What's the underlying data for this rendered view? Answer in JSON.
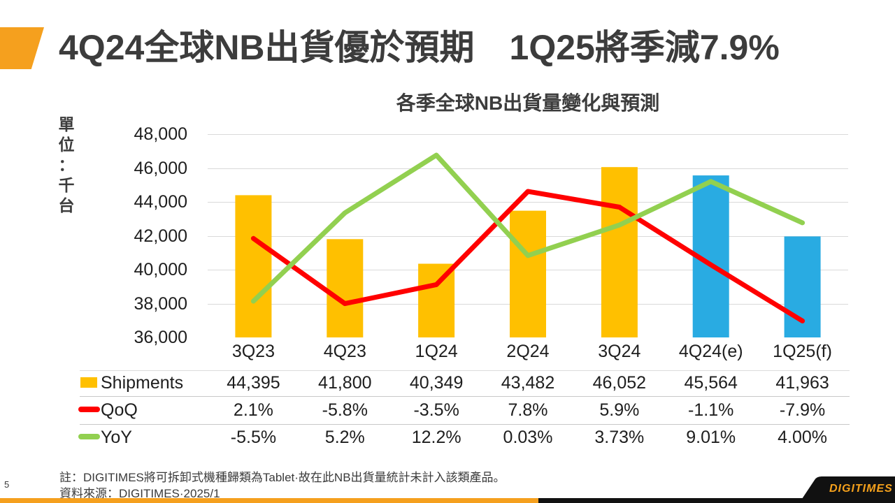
{
  "slide": {
    "title": "4Q24全球NB出貨優於預期　1Q25將季減7.9%",
    "page_number": "5",
    "note": "註：DIGITIMES將可拆卸式機種歸類為Tablet·故在此NB出貨量統計未計入該類產品。",
    "source": "資料來源：DIGITIMES·2025/1",
    "logo_text": "DIGITIMES",
    "accent_color": "#F5A01E"
  },
  "chart_data": {
    "type": "bar+line combo",
    "title": "各季全球NB出貨量變化與預測",
    "unit_label": "單位：千台",
    "categories": [
      "3Q23",
      "4Q23",
      "1Q24",
      "2Q24",
      "3Q24",
      "4Q24(e)",
      "1Q25(f)"
    ],
    "series": [
      {
        "name": "Shipments",
        "type": "bar",
        "values": [
          44395,
          41800,
          40349,
          43482,
          46052,
          45564,
          41963
        ],
        "display": [
          "44,395",
          "41,800",
          "40,349",
          "43,482",
          "46,052",
          "45,564",
          "41,963"
        ],
        "color_actual": "#FFC000",
        "color_forecast": "#29ABE2",
        "forecast_from_index": 5
      },
      {
        "name": "QoQ",
        "type": "line",
        "color": "#FF0000",
        "values": [
          2.1,
          -5.8,
          -3.5,
          7.8,
          5.9,
          -1.1,
          -7.9
        ],
        "display": [
          "2.1%",
          "-5.8%",
          "-3.5%",
          "7.8%",
          "5.9%",
          "-1.1%",
          "-7.9%"
        ]
      },
      {
        "name": "YoY",
        "type": "line",
        "color": "#92D050",
        "values": [
          -5.5,
          5.2,
          12.2,
          0.03,
          3.73,
          9.01,
          4.0
        ],
        "display": [
          "-5.5%",
          "5.2%",
          "12.2%",
          "0.03%",
          "3.73%",
          "9.01%",
          "4.00%"
        ]
      }
    ],
    "y_axis": {
      "min": 36000,
      "max": 48000,
      "step": 2000,
      "tick_labels": [
        "48,000",
        "46,000",
        "44,000",
        "42,000",
        "40,000",
        "38,000",
        "36,000"
      ]
    },
    "secondary_axis_estimate": {
      "min": -9.9,
      "max": 14.75
    },
    "grid": "horizontal",
    "gridline_color": "#D9D9D9",
    "legend_position": "table-left"
  }
}
